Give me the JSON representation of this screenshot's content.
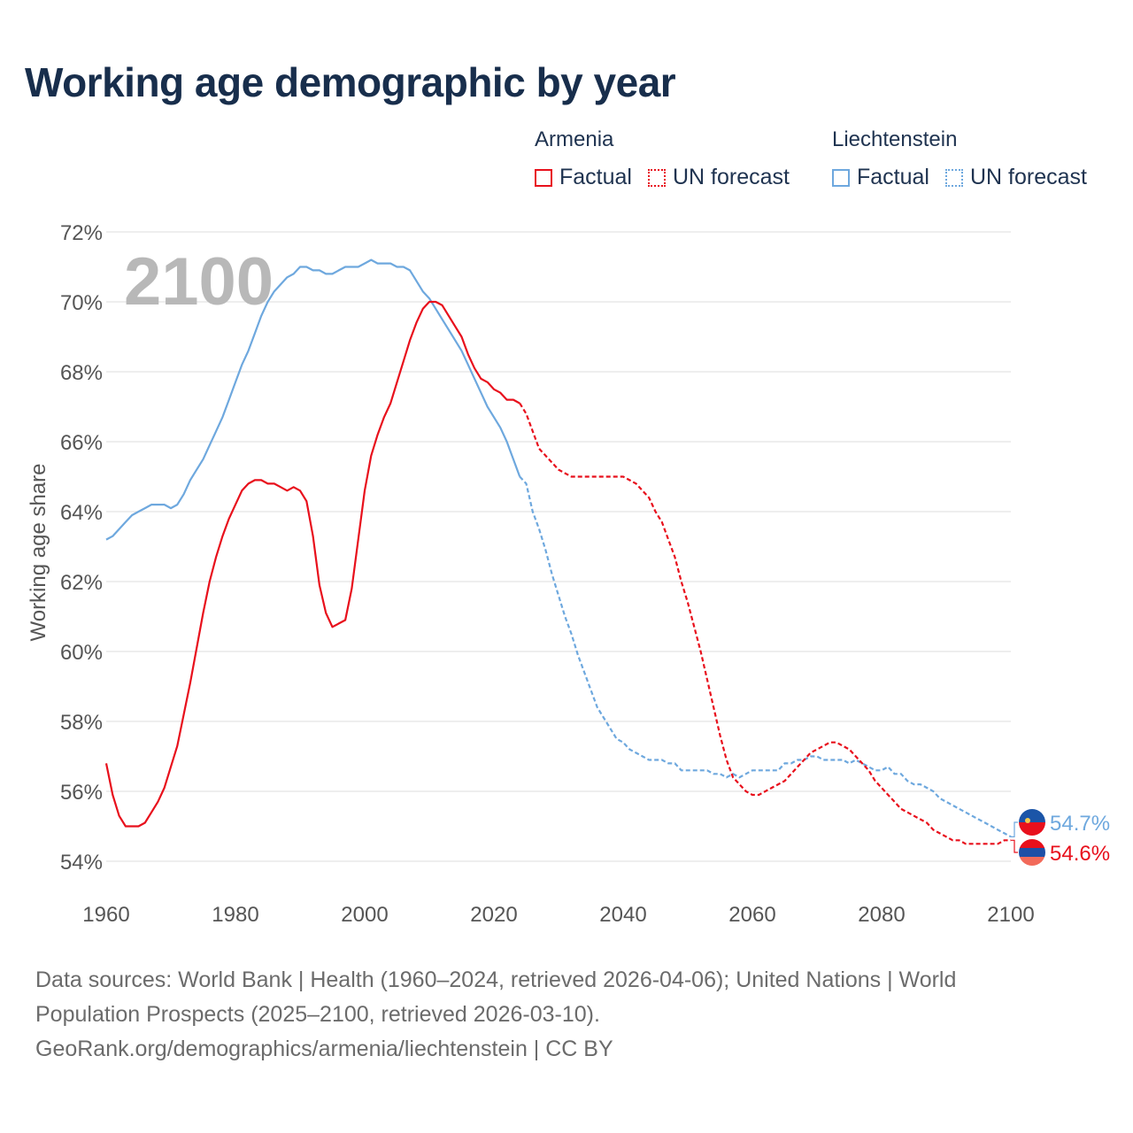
{
  "title": "Working age demographic by year",
  "legend": {
    "groups": [
      {
        "name": "Armenia",
        "color": "#e8101c",
        "factual_label": "Factual",
        "forecast_label": "UN forecast"
      },
      {
        "name": "Liechtenstein",
        "color": "#6ea8de",
        "factual_label": "Factual",
        "forecast_label": "UN forecast"
      }
    ]
  },
  "footer": {
    "line1": "Data sources: World Bank | Health (1960–2024, retrieved 2026-04-06); United Nations | World",
    "line2": "Population Prospects (2025–2100, retrieved 2026-03-10).",
    "line3": "GeoRank.org/demographics/armenia/liechtenstein | CC BY"
  },
  "chart_data": {
    "type": "line",
    "title": "Working age demographic by year",
    "xlabel": "",
    "ylabel": "Working age share",
    "xlim": [
      1960,
      2100
    ],
    "ylim": [
      54,
      72
    ],
    "x_ticks": [
      1960,
      1980,
      2000,
      2020,
      2040,
      2060,
      2080,
      2100
    ],
    "y_ticks": [
      54,
      56,
      58,
      60,
      62,
      64,
      66,
      68,
      70,
      72
    ],
    "y_tick_labels": [
      "54%",
      "56%",
      "58%",
      "60%",
      "62%",
      "64%",
      "66%",
      "68%",
      "70%",
      "72%"
    ],
    "x_tick_labels": [
      "1960",
      "1980",
      "2000",
      "2020",
      "2040",
      "2060",
      "2080",
      "2100"
    ],
    "grid": true,
    "current_year_label": "2100",
    "series": [
      {
        "name": "Armenia",
        "color": "#e8101c",
        "factual_range": [
          1960,
          2024
        ],
        "forecast_range": [
          2024,
          2100
        ],
        "end_label": "54.6%",
        "points": [
          [
            1960,
            56.8
          ],
          [
            1961,
            55.9
          ],
          [
            1962,
            55.3
          ],
          [
            1963,
            55.0
          ],
          [
            1964,
            55.0
          ],
          [
            1965,
            55.0
          ],
          [
            1966,
            55.1
          ],
          [
            1967,
            55.4
          ],
          [
            1968,
            55.7
          ],
          [
            1969,
            56.1
          ],
          [
            1970,
            56.7
          ],
          [
            1971,
            57.3
          ],
          [
            1972,
            58.2
          ],
          [
            1973,
            59.1
          ],
          [
            1974,
            60.1
          ],
          [
            1975,
            61.1
          ],
          [
            1976,
            62.0
          ],
          [
            1977,
            62.7
          ],
          [
            1978,
            63.3
          ],
          [
            1979,
            63.8
          ],
          [
            1980,
            64.2
          ],
          [
            1981,
            64.6
          ],
          [
            1982,
            64.8
          ],
          [
            1983,
            64.9
          ],
          [
            1984,
            64.9
          ],
          [
            1985,
            64.8
          ],
          [
            1986,
            64.8
          ],
          [
            1987,
            64.7
          ],
          [
            1988,
            64.6
          ],
          [
            1989,
            64.7
          ],
          [
            1990,
            64.6
          ],
          [
            1991,
            64.3
          ],
          [
            1992,
            63.3
          ],
          [
            1993,
            61.9
          ],
          [
            1994,
            61.1
          ],
          [
            1995,
            60.7
          ],
          [
            1996,
            60.8
          ],
          [
            1997,
            60.9
          ],
          [
            1998,
            61.8
          ],
          [
            1999,
            63.2
          ],
          [
            2000,
            64.6
          ],
          [
            2001,
            65.6
          ],
          [
            2002,
            66.2
          ],
          [
            2003,
            66.7
          ],
          [
            2004,
            67.1
          ],
          [
            2005,
            67.7
          ],
          [
            2006,
            68.3
          ],
          [
            2007,
            68.9
          ],
          [
            2008,
            69.4
          ],
          [
            2009,
            69.8
          ],
          [
            2010,
            70.0
          ],
          [
            2011,
            70.0
          ],
          [
            2012,
            69.9
          ],
          [
            2013,
            69.6
          ],
          [
            2014,
            69.3
          ],
          [
            2015,
            69.0
          ],
          [
            2016,
            68.5
          ],
          [
            2017,
            68.1
          ],
          [
            2018,
            67.8
          ],
          [
            2019,
            67.7
          ],
          [
            2020,
            67.5
          ],
          [
            2021,
            67.4
          ],
          [
            2022,
            67.2
          ],
          [
            2023,
            67.2
          ],
          [
            2024,
            67.1
          ],
          [
            2025,
            66.8
          ],
          [
            2026,
            66.3
          ],
          [
            2027,
            65.8
          ],
          [
            2028,
            65.6
          ],
          [
            2029,
            65.4
          ],
          [
            2030,
            65.2
          ],
          [
            2031,
            65.1
          ],
          [
            2032,
            65.0
          ],
          [
            2034,
            65.0
          ],
          [
            2036,
            65.0
          ],
          [
            2038,
            65.0
          ],
          [
            2040,
            65.0
          ],
          [
            2041,
            64.9
          ],
          [
            2042,
            64.8
          ],
          [
            2043,
            64.6
          ],
          [
            2044,
            64.4
          ],
          [
            2045,
            64.0
          ],
          [
            2046,
            63.7
          ],
          [
            2047,
            63.2
          ],
          [
            2048,
            62.7
          ],
          [
            2049,
            62.0
          ],
          [
            2050,
            61.4
          ],
          [
            2051,
            60.7
          ],
          [
            2052,
            60.0
          ],
          [
            2053,
            59.2
          ],
          [
            2054,
            58.4
          ],
          [
            2055,
            57.6
          ],
          [
            2056,
            56.9
          ],
          [
            2057,
            56.4
          ],
          [
            2058,
            56.2
          ],
          [
            2059,
            56.0
          ],
          [
            2060,
            55.9
          ],
          [
            2061,
            55.9
          ],
          [
            2062,
            56.0
          ],
          [
            2063,
            56.1
          ],
          [
            2064,
            56.2
          ],
          [
            2065,
            56.3
          ],
          [
            2066,
            56.5
          ],
          [
            2067,
            56.7
          ],
          [
            2068,
            56.9
          ],
          [
            2069,
            57.1
          ],
          [
            2070,
            57.2
          ],
          [
            2071,
            57.3
          ],
          [
            2072,
            57.4
          ],
          [
            2073,
            57.4
          ],
          [
            2074,
            57.3
          ],
          [
            2075,
            57.2
          ],
          [
            2076,
            57.0
          ],
          [
            2077,
            56.8
          ],
          [
            2078,
            56.6
          ],
          [
            2079,
            56.3
          ],
          [
            2080,
            56.1
          ],
          [
            2081,
            55.9
          ],
          [
            2082,
            55.7
          ],
          [
            2083,
            55.5
          ],
          [
            2084,
            55.4
          ],
          [
            2085,
            55.3
          ],
          [
            2086,
            55.2
          ],
          [
            2087,
            55.1
          ],
          [
            2088,
            54.9
          ],
          [
            2089,
            54.8
          ],
          [
            2090,
            54.7
          ],
          [
            2091,
            54.6
          ],
          [
            2092,
            54.6
          ],
          [
            2093,
            54.5
          ],
          [
            2094,
            54.5
          ],
          [
            2096,
            54.5
          ],
          [
            2098,
            54.5
          ],
          [
            2099,
            54.6
          ],
          [
            2100,
            54.6
          ]
        ]
      },
      {
        "name": "Liechtenstein",
        "color": "#6ea8de",
        "factual_range": [
          1960,
          2024
        ],
        "forecast_range": [
          2024,
          2100
        ],
        "end_label": "54.7%",
        "points": [
          [
            1960,
            63.2
          ],
          [
            1961,
            63.3
          ],
          [
            1962,
            63.5
          ],
          [
            1963,
            63.7
          ],
          [
            1964,
            63.9
          ],
          [
            1965,
            64.0
          ],
          [
            1966,
            64.1
          ],
          [
            1967,
            64.2
          ],
          [
            1968,
            64.2
          ],
          [
            1969,
            64.2
          ],
          [
            1970,
            64.1
          ],
          [
            1971,
            64.2
          ],
          [
            1972,
            64.5
          ],
          [
            1973,
            64.9
          ],
          [
            1974,
            65.2
          ],
          [
            1975,
            65.5
          ],
          [
            1976,
            65.9
          ],
          [
            1977,
            66.3
          ],
          [
            1978,
            66.7
          ],
          [
            1979,
            67.2
          ],
          [
            1980,
            67.7
          ],
          [
            1981,
            68.2
          ],
          [
            1982,
            68.6
          ],
          [
            1983,
            69.1
          ],
          [
            1984,
            69.6
          ],
          [
            1985,
            70.0
          ],
          [
            1986,
            70.3
          ],
          [
            1987,
            70.5
          ],
          [
            1988,
            70.7
          ],
          [
            1989,
            70.8
          ],
          [
            1990,
            71.0
          ],
          [
            1991,
            71.0
          ],
          [
            1992,
            70.9
          ],
          [
            1993,
            70.9
          ],
          [
            1994,
            70.8
          ],
          [
            1995,
            70.8
          ],
          [
            1996,
            70.9
          ],
          [
            1997,
            71.0
          ],
          [
            1998,
            71.0
          ],
          [
            1999,
            71.0
          ],
          [
            2000,
            71.1
          ],
          [
            2001,
            71.2
          ],
          [
            2002,
            71.1
          ],
          [
            2003,
            71.1
          ],
          [
            2004,
            71.1
          ],
          [
            2005,
            71.0
          ],
          [
            2006,
            71.0
          ],
          [
            2007,
            70.9
          ],
          [
            2008,
            70.6
          ],
          [
            2009,
            70.3
          ],
          [
            2010,
            70.1
          ],
          [
            2011,
            69.8
          ],
          [
            2012,
            69.5
          ],
          [
            2013,
            69.2
          ],
          [
            2014,
            68.9
          ],
          [
            2015,
            68.6
          ],
          [
            2016,
            68.2
          ],
          [
            2017,
            67.8
          ],
          [
            2018,
            67.4
          ],
          [
            2019,
            67.0
          ],
          [
            2020,
            66.7
          ],
          [
            2021,
            66.4
          ],
          [
            2022,
            66.0
          ],
          [
            2023,
            65.5
          ],
          [
            2024,
            65.0
          ],
          [
            2025,
            64.8
          ],
          [
            2026,
            64.0
          ],
          [
            2027,
            63.5
          ],
          [
            2028,
            62.9
          ],
          [
            2029,
            62.2
          ],
          [
            2030,
            61.6
          ],
          [
            2031,
            61.0
          ],
          [
            2032,
            60.5
          ],
          [
            2033,
            59.9
          ],
          [
            2034,
            59.4
          ],
          [
            2035,
            58.9
          ],
          [
            2036,
            58.4
          ],
          [
            2037,
            58.1
          ],
          [
            2038,
            57.8
          ],
          [
            2039,
            57.5
          ],
          [
            2040,
            57.4
          ],
          [
            2041,
            57.2
          ],
          [
            2042,
            57.1
          ],
          [
            2043,
            57.0
          ],
          [
            2044,
            56.9
          ],
          [
            2046,
            56.9
          ],
          [
            2047,
            56.8
          ],
          [
            2048,
            56.8
          ],
          [
            2049,
            56.6
          ],
          [
            2050,
            56.6
          ],
          [
            2052,
            56.6
          ],
          [
            2053,
            56.6
          ],
          [
            2054,
            56.5
          ],
          [
            2055,
            56.5
          ],
          [
            2056,
            56.4
          ],
          [
            2057,
            56.5
          ],
          [
            2058,
            56.4
          ],
          [
            2059,
            56.5
          ],
          [
            2060,
            56.6
          ],
          [
            2062,
            56.6
          ],
          [
            2064,
            56.6
          ],
          [
            2065,
            56.8
          ],
          [
            2066,
            56.8
          ],
          [
            2067,
            56.9
          ],
          [
            2068,
            56.9
          ],
          [
            2069,
            57.0
          ],
          [
            2070,
            57.0
          ],
          [
            2071,
            56.9
          ],
          [
            2072,
            56.9
          ],
          [
            2073,
            56.9
          ],
          [
            2074,
            56.9
          ],
          [
            2075,
            56.8
          ],
          [
            2076,
            56.9
          ],
          [
            2077,
            56.8
          ],
          [
            2078,
            56.7
          ],
          [
            2079,
            56.6
          ],
          [
            2080,
            56.6
          ],
          [
            2081,
            56.7
          ],
          [
            2082,
            56.5
          ],
          [
            2083,
            56.5
          ],
          [
            2084,
            56.3
          ],
          [
            2085,
            56.2
          ],
          [
            2086,
            56.2
          ],
          [
            2087,
            56.1
          ],
          [
            2088,
            56.0
          ],
          [
            2089,
            55.8
          ],
          [
            2090,
            55.7
          ],
          [
            2091,
            55.6
          ],
          [
            2092,
            55.5
          ],
          [
            2093,
            55.4
          ],
          [
            2094,
            55.3
          ],
          [
            2095,
            55.2
          ],
          [
            2096,
            55.1
          ],
          [
            2097,
            55.0
          ],
          [
            2098,
            54.9
          ],
          [
            2099,
            54.8
          ],
          [
            2100,
            54.7
          ]
        ]
      }
    ]
  }
}
